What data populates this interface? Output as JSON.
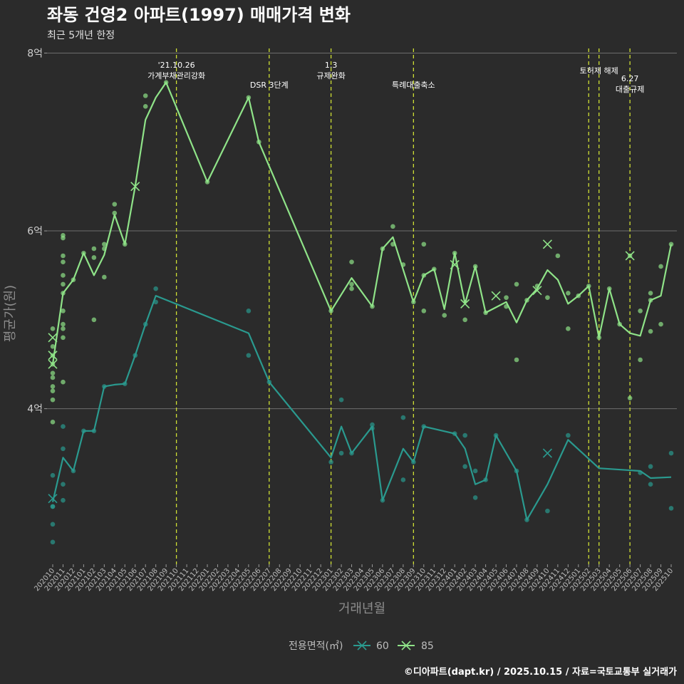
{
  "chart_data": {
    "type": "line",
    "title": "좌동 건영2 아파트(1997) 매매가격 변화",
    "subtitle": "최근 5개년 한정",
    "xlabel": "거래년월",
    "ylabel": "평균가(원)",
    "caption": "©디아파트(dapt.kr) / 2025.10.15 / 자료=국토교통부 실거래가",
    "ylim": [
      2.25,
      8.1
    ],
    "yticks": [
      {
        "value": 4,
        "label": "4억"
      },
      {
        "value": 6,
        "label": "6억"
      },
      {
        "value": 8,
        "label": "8억"
      }
    ],
    "x": [
      "202010",
      "202011",
      "202012",
      "202101",
      "202102",
      "202103",
      "202104",
      "202105",
      "202106",
      "202107",
      "202108",
      "202109",
      "202110",
      "202111",
      "202112",
      "202201",
      "202202",
      "202203",
      "202204",
      "202205",
      "202206",
      "202207",
      "202208",
      "202209",
      "202210",
      "202211",
      "202212",
      "202301",
      "202302",
      "202303",
      "202304",
      "202305",
      "202306",
      "202307",
      "202308",
      "202309",
      "202310",
      "202311",
      "202312",
      "202401",
      "202402",
      "202403",
      "202404",
      "202405",
      "202406",
      "202407",
      "202408",
      "202409",
      "202410",
      "202411",
      "202412",
      "202501",
      "202502",
      "202503",
      "202504",
      "202505",
      "202506",
      "202507",
      "202508",
      "202509",
      "202510"
    ],
    "legend": {
      "title": "전용면적(㎡)",
      "entries": [
        "60",
        "85"
      ]
    },
    "colors": {
      "60": "#2a9a8f",
      "85": "#8fe388",
      "event_line": "#cfe034",
      "grid": "#6e6e6e"
    },
    "events": [
      {
        "x": "202110",
        "lines": [
          "'21.10.26",
          "가계부채관리강화"
        ],
        "row": 0
      },
      {
        "x": "202207",
        "lines": [
          "DSR 3단계"
        ],
        "row": 1
      },
      {
        "x": "202301",
        "lines": [
          "1.3",
          "규제완화"
        ],
        "row": 0
      },
      {
        "x": "202309",
        "lines": [
          "특례대출축소"
        ],
        "row": 1
      },
      {
        "x": "202502",
        "lines": [],
        "row": 0
      },
      {
        "x": "202503",
        "lines": [
          "토허제 해제"
        ],
        "row": 0
      },
      {
        "x": "202506",
        "lines": [
          "6.27",
          "대출규제"
        ],
        "row": 2
      }
    ],
    "series": [
      {
        "name": "60",
        "line": [
          [
            "202010",
            2.95
          ],
          [
            "202011",
            3.45
          ],
          [
            "202012",
            3.3
          ],
          [
            "202101",
            3.75
          ],
          [
            "202102",
            3.75
          ],
          [
            "202103",
            4.25
          ],
          [
            "202104",
            4.27
          ],
          [
            "202105",
            4.28
          ],
          [
            "202106",
            4.6
          ],
          [
            "202107",
            4.95
          ],
          [
            "202108",
            5.27
          ],
          [
            "202205",
            4.85
          ],
          [
            "202207",
            4.3
          ],
          [
            "202301",
            3.45
          ],
          [
            "202302",
            3.8
          ],
          [
            "202303",
            3.5
          ],
          [
            "202305",
            3.8
          ],
          [
            "202306",
            2.97
          ],
          [
            "202308",
            3.55
          ],
          [
            "202309",
            3.4
          ],
          [
            "202310",
            3.8
          ],
          [
            "202401",
            3.72
          ],
          [
            "202402",
            3.55
          ],
          [
            "202403",
            3.15
          ],
          [
            "202404",
            3.2
          ],
          [
            "202405",
            3.7
          ],
          [
            "202407",
            3.3
          ],
          [
            "202408",
            2.75
          ],
          [
            "202410",
            3.15
          ],
          [
            "202412",
            3.65
          ],
          [
            "202503",
            3.33
          ],
          [
            "202507",
            3.3
          ],
          [
            "202508",
            3.22
          ],
          [
            "202510",
            3.23
          ]
        ],
        "points": [
          [
            "202010",
            2.9
          ],
          [
            "202010",
            2.9
          ],
          [
            "202010",
            2.7
          ],
          [
            "202010",
            2.5
          ],
          [
            "202010",
            3.25
          ],
          [
            "202011",
            3.8
          ],
          [
            "202011",
            3.55
          ],
          [
            "202011",
            3.15
          ],
          [
            "202011",
            2.97
          ],
          [
            "202012",
            3.3
          ],
          [
            "202101",
            3.75
          ],
          [
            "202102",
            3.75
          ],
          [
            "202103",
            4.25
          ],
          [
            "202105",
            4.28
          ],
          [
            "202106",
            4.6
          ],
          [
            "202107",
            4.95
          ],
          [
            "202108",
            5.35
          ],
          [
            "202108",
            5.2
          ],
          [
            "202205",
            5.1
          ],
          [
            "202205",
            4.6
          ],
          [
            "202207",
            4.3
          ],
          [
            "202301",
            3.4
          ],
          [
            "202302",
            4.1
          ],
          [
            "202302",
            3.5
          ],
          [
            "202303",
            3.5
          ],
          [
            "202305",
            3.82
          ],
          [
            "202305",
            3.78
          ],
          [
            "202306",
            2.97
          ],
          [
            "202308",
            3.9
          ],
          [
            "202308",
            3.2
          ],
          [
            "202309",
            3.4
          ],
          [
            "202310",
            3.8
          ],
          [
            "202401",
            3.72
          ],
          [
            "202402",
            3.7
          ],
          [
            "202402",
            3.35
          ],
          [
            "202403",
            3.3
          ],
          [
            "202403",
            3.0
          ],
          [
            "202404",
            3.2
          ],
          [
            "202405",
            3.7
          ],
          [
            "202407",
            3.3
          ],
          [
            "202408",
            2.75
          ],
          [
            "202410",
            2.85
          ],
          [
            "202412",
            3.7
          ],
          [
            "202507",
            3.28
          ],
          [
            "202508",
            3.35
          ],
          [
            "202508",
            3.15
          ],
          [
            "202510",
            3.5
          ],
          [
            "202510",
            2.88
          ]
        ],
        "crosses": [
          [
            "202010",
            2.99
          ],
          [
            "202410",
            3.5
          ]
        ]
      },
      {
        "name": "85",
        "line": [
          [
            "202010",
            4.5
          ],
          [
            "202011",
            5.3
          ],
          [
            "202012",
            5.45
          ],
          [
            "202101",
            5.75
          ],
          [
            "202102",
            5.5
          ],
          [
            "202103",
            5.73
          ],
          [
            "202104",
            6.18
          ],
          [
            "202105",
            5.85
          ],
          [
            "202106",
            6.5
          ],
          [
            "202107",
            7.25
          ],
          [
            "202108",
            7.5
          ],
          [
            "202109",
            7.67
          ],
          [
            "202201",
            6.55
          ],
          [
            "202205",
            7.5
          ],
          [
            "202206",
            7.0
          ],
          [
            "202301",
            5.1
          ],
          [
            "202303",
            5.47
          ],
          [
            "202305",
            5.15
          ],
          [
            "202306",
            5.8
          ],
          [
            "202307",
            5.93
          ],
          [
            "202309",
            5.2
          ],
          [
            "202310",
            5.5
          ],
          [
            "202311",
            5.57
          ],
          [
            "202312",
            5.12
          ],
          [
            "202401",
            5.75
          ],
          [
            "202402",
            5.18
          ],
          [
            "202403",
            5.6
          ],
          [
            "202404",
            5.08
          ],
          [
            "202406",
            5.2
          ],
          [
            "202407",
            4.97
          ],
          [
            "202408",
            5.22
          ],
          [
            "202409",
            5.35
          ],
          [
            "202410",
            5.56
          ],
          [
            "202411",
            5.45
          ],
          [
            "202412",
            5.18
          ],
          [
            "202501",
            5.27
          ],
          [
            "202502",
            5.38
          ],
          [
            "202503",
            4.8
          ],
          [
            "202504",
            5.35
          ],
          [
            "202505",
            4.95
          ],
          [
            "202506",
            4.85
          ],
          [
            "202507",
            4.82
          ],
          [
            "202508",
            5.22
          ],
          [
            "202509",
            5.27
          ],
          [
            "202510",
            5.85
          ]
        ],
        "points": [
          [
            "202010",
            4.9
          ],
          [
            "202010",
            4.7
          ],
          [
            "202010",
            4.6
          ],
          [
            "202010",
            4.5
          ],
          [
            "202010",
            4.4
          ],
          [
            "202010",
            4.35
          ],
          [
            "202010",
            4.25
          ],
          [
            "202010",
            4.2
          ],
          [
            "202010",
            4.1
          ],
          [
            "202010",
            3.85
          ],
          [
            "202011",
            5.95
          ],
          [
            "202011",
            5.92
          ],
          [
            "202011",
            5.72
          ],
          [
            "202011",
            5.65
          ],
          [
            "202011",
            5.5
          ],
          [
            "202011",
            5.4
          ],
          [
            "202011",
            5.3
          ],
          [
            "202011",
            5.1
          ],
          [
            "202011",
            4.95
          ],
          [
            "202011",
            4.9
          ],
          [
            "202011",
            4.8
          ],
          [
            "202011",
            4.3
          ],
          [
            "202012",
            5.45
          ],
          [
            "202101",
            5.75
          ],
          [
            "202102",
            5.8
          ],
          [
            "202102",
            5.7
          ],
          [
            "202102",
            5.0
          ],
          [
            "202103",
            5.85
          ],
          [
            "202103",
            5.8
          ],
          [
            "202103",
            5.48
          ],
          [
            "202104",
            6.3
          ],
          [
            "202104",
            6.2
          ],
          [
            "202105",
            5.85
          ],
          [
            "202107",
            7.52
          ],
          [
            "202107",
            7.4
          ],
          [
            "202109",
            7.67
          ],
          [
            "202201",
            6.55
          ],
          [
            "202205",
            7.5
          ],
          [
            "202206",
            7.0
          ],
          [
            "202301",
            5.1
          ],
          [
            "202303",
            5.65
          ],
          [
            "202303",
            5.4
          ],
          [
            "202303",
            5.35
          ],
          [
            "202305",
            5.15
          ],
          [
            "202306",
            5.8
          ],
          [
            "202307",
            6.05
          ],
          [
            "202307",
            5.85
          ],
          [
            "202308",
            5.62
          ],
          [
            "202309",
            5.2
          ],
          [
            "202310",
            5.85
          ],
          [
            "202310",
            5.5
          ],
          [
            "202310",
            5.1
          ],
          [
            "202311",
            5.57
          ],
          [
            "202312",
            5.05
          ],
          [
            "202401",
            5.75
          ],
          [
            "202402",
            5.0
          ],
          [
            "202403",
            5.6
          ],
          [
            "202404",
            5.08
          ],
          [
            "202406",
            5.25
          ],
          [
            "202406",
            5.15
          ],
          [
            "202407",
            5.4
          ],
          [
            "202407",
            4.55
          ],
          [
            "202408",
            5.22
          ],
          [
            "202409",
            5.38
          ],
          [
            "202410",
            5.25
          ],
          [
            "202411",
            5.72
          ],
          [
            "202412",
            5.3
          ],
          [
            "202412",
            4.9
          ],
          [
            "202501",
            5.27
          ],
          [
            "202502",
            5.38
          ],
          [
            "202503",
            4.8
          ],
          [
            "202504",
            5.35
          ],
          [
            "202505",
            4.95
          ],
          [
            "202506",
            5.72
          ],
          [
            "202506",
            4.12
          ],
          [
            "202507",
            5.1
          ],
          [
            "202507",
            4.55
          ],
          [
            "202508",
            5.3
          ],
          [
            "202508",
            5.22
          ],
          [
            "202508",
            4.87
          ],
          [
            "202509",
            5.6
          ],
          [
            "202509",
            4.95
          ],
          [
            "202510",
            5.85
          ]
        ],
        "crosses": [
          [
            "202010",
            4.8
          ],
          [
            "202010",
            4.6
          ],
          [
            "202010",
            4.5
          ],
          [
            "202106",
            6.5
          ],
          [
            "202401",
            5.62
          ],
          [
            "202402",
            5.18
          ],
          [
            "202405",
            5.27
          ],
          [
            "202409",
            5.33
          ],
          [
            "202410",
            5.85
          ],
          [
            "202506",
            5.72
          ]
        ]
      }
    ]
  }
}
